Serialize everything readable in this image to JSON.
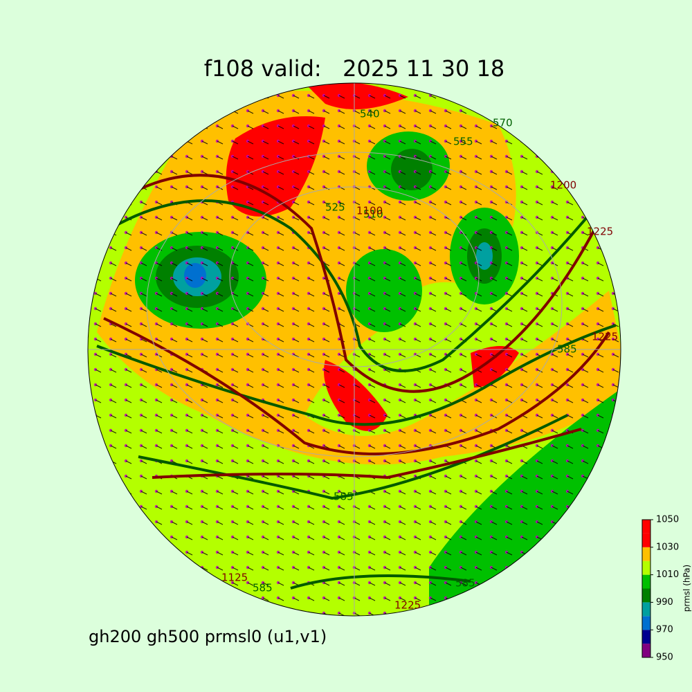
{
  "header": {
    "title": "f108 valid:   2025 11 30 18"
  },
  "caption": "gh200 gh500 prmsl0 (u1,v1)",
  "contour_labels": [
    "570",
    "555",
    "540",
    "525",
    "510",
    "585",
    "585",
    "585",
    "585",
    "1225",
    "1225",
    "1225",
    "1200",
    "1125",
    "1100"
  ],
  "colorbar": {
    "label": "prmsl (hPa)",
    "bounds": [
      950,
      960,
      970,
      980,
      990,
      1000,
      1010,
      1020,
      1030,
      1040,
      1050
    ],
    "colors": [
      "#800080",
      "#000090",
      "#0070d0",
      "#00a0a0",
      "#008000",
      "#00c000",
      "#b4ff00",
      "#ffc000",
      "#ff0000",
      "#ff0000"
    ],
    "ticks": [
      950,
      970,
      990,
      1010,
      1030,
      1050
    ]
  }
}
